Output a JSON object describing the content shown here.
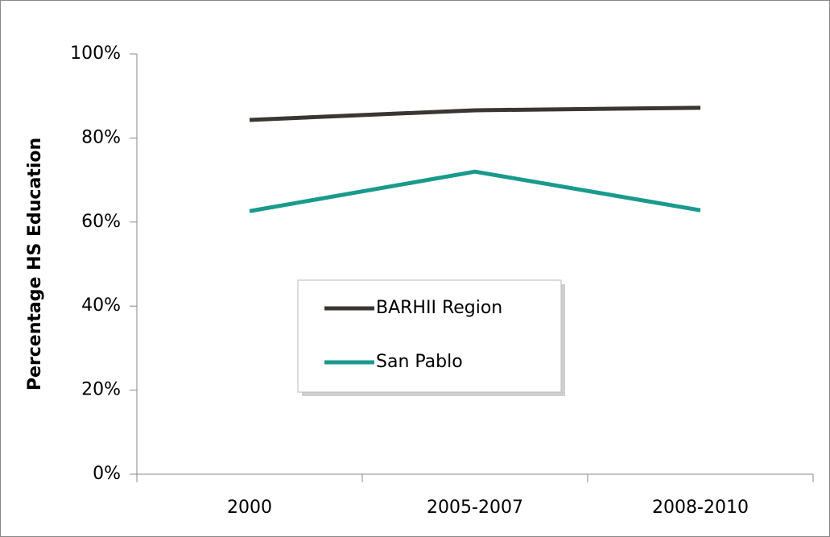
{
  "chart_data": {
    "type": "line",
    "y_axis_label": "Percentage HS Education",
    "categories": [
      "2000",
      "2005-2007",
      "2008-2010"
    ],
    "series": [
      {
        "name": "BARHII Region",
        "color": "#3a3632",
        "values": [
          84.3,
          86.6,
          87.2
        ]
      },
      {
        "name": "San Pablo",
        "color": "#1a9a8c",
        "values": [
          62.6,
          72.0,
          62.8
        ]
      }
    ],
    "ylim": [
      0,
      100
    ],
    "yticks": [
      {
        "value": 0,
        "label": "0%"
      },
      {
        "value": 20,
        "label": "20%"
      },
      {
        "value": 40,
        "label": "40%"
      },
      {
        "value": 60,
        "label": "60%"
      },
      {
        "value": 80,
        "label": "80%"
      },
      {
        "value": 100,
        "label": "100%"
      }
    ],
    "grid": false,
    "legend": "center"
  }
}
